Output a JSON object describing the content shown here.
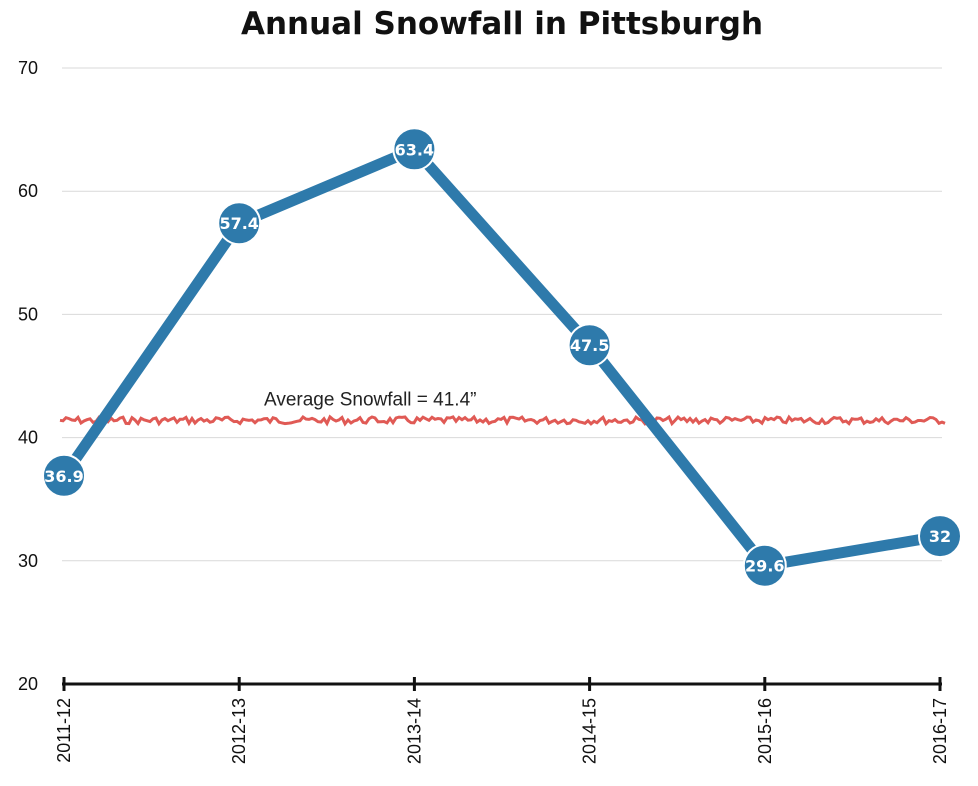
{
  "chart_data": {
    "type": "line",
    "title": "Annual Snowfall in Pittsburgh",
    "xlabel": "",
    "ylabel": "",
    "categories": [
      "2011-12",
      "2012-13",
      "2013-14",
      "2014-15",
      "2015-16",
      "2016-17"
    ],
    "series": [
      {
        "values": [
          36.9,
          57.4,
          63.4,
          47.5,
          29.6,
          32
        ],
        "value_labels": [
          "36.9",
          "57.4",
          "63.4",
          "47.5",
          "29.6",
          "32"
        ],
        "color": "#2e7aab"
      }
    ],
    "ylim": [
      20,
      70
    ],
    "yticks": [
      20,
      30,
      40,
      50,
      60,
      70
    ],
    "ytick_labels": [
      "20",
      "30",
      "40",
      "50",
      "60",
      "70"
    ],
    "grid": true,
    "x_tick_label_rotation": "vertical",
    "reference_line": {
      "value": 41.4,
      "label": "Average Snowfall = 41.4”",
      "color": "#e05a55",
      "style": "jagged"
    }
  }
}
